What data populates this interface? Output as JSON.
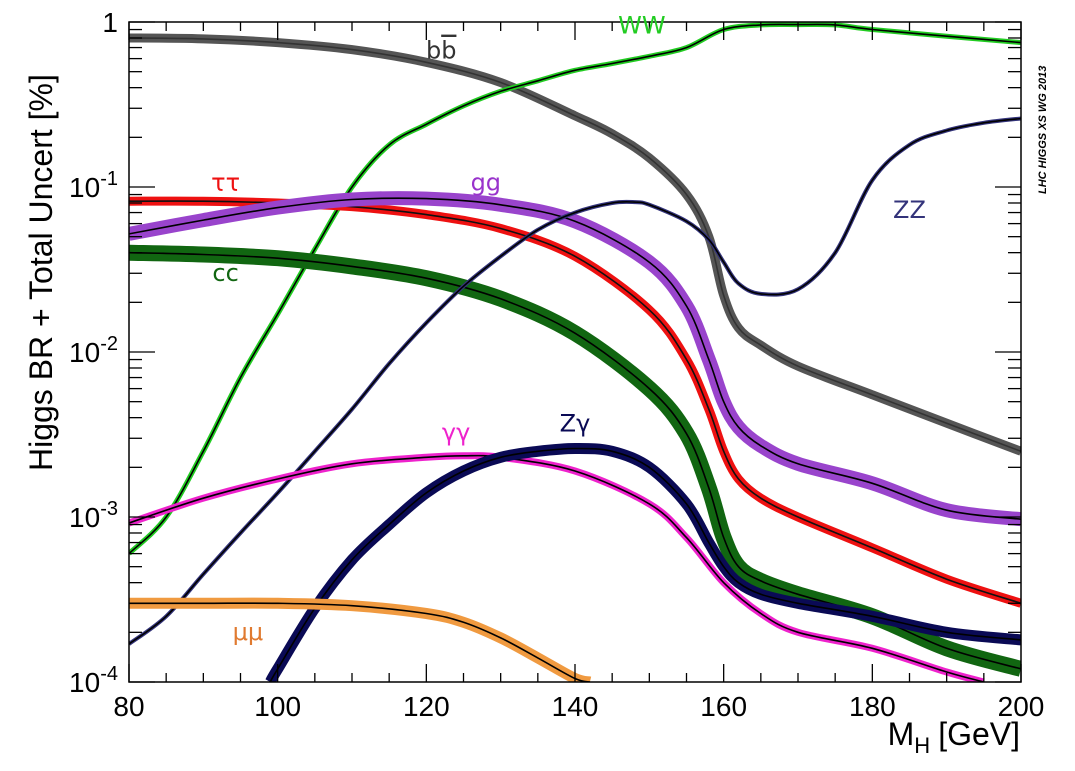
{
  "chart_data": {
    "type": "line",
    "ylabel": "Higgs BR + Total Uncert [%]",
    "xlabel_main": "M",
    "xlabel_sub": "H",
    "xlabel_unit": "[GeV]",
    "credit": "LHC HIGGS XS WG 2013",
    "xlim": [
      80,
      200
    ],
    "ylim": [
      0.0001,
      1
    ],
    "yscale": "log",
    "x_ticks": [
      "80",
      "100",
      "120",
      "140",
      "160",
      "180",
      "200"
    ],
    "y_ticks": [
      {
        "base": "1",
        "exp": ""
      },
      {
        "base": "10",
        "exp": "-1"
      },
      {
        "base": "10",
        "exp": "-2"
      },
      {
        "base": "10",
        "exp": "-3"
      },
      {
        "base": "10",
        "exp": "-4"
      }
    ],
    "grid": false,
    "series": [
      {
        "name": "bb̄",
        "label_text": "bb",
        "label_overline": "b",
        "color": "#333333",
        "band_color": "#555555",
        "band_width": 9,
        "x": [
          80,
          90,
          100,
          110,
          120,
          130,
          140,
          145,
          150,
          155,
          158,
          160,
          162,
          165,
          170,
          180,
          190,
          200
        ],
        "y": [
          0.8,
          0.79,
          0.75,
          0.68,
          0.57,
          0.43,
          0.27,
          0.21,
          0.15,
          0.09,
          0.05,
          0.022,
          0.014,
          0.011,
          0.0082,
          0.0055,
          0.0037,
          0.0025
        ]
      },
      {
        "name": "WW",
        "label_text": "WW",
        "color": "#000000",
        "band_color": "#22cc22",
        "band_width": 5,
        "x": [
          80,
          85,
          90,
          95,
          100,
          105,
          110,
          115,
          120,
          125,
          130,
          135,
          140,
          145,
          150,
          155,
          160,
          165,
          170,
          175,
          180,
          190,
          200
        ],
        "y": [
          0.0006,
          0.001,
          0.0025,
          0.007,
          0.017,
          0.042,
          0.1,
          0.18,
          0.24,
          0.31,
          0.38,
          0.44,
          0.51,
          0.56,
          0.62,
          0.7,
          0.9,
          0.96,
          0.965,
          0.96,
          0.9,
          0.82,
          0.75
        ]
      },
      {
        "name": "ττ",
        "label_text": "ττ",
        "color": "#111111",
        "band_color": "#ee1111",
        "band_width": 9,
        "x": [
          80,
          90,
          100,
          110,
          120,
          130,
          140,
          150,
          155,
          158,
          160,
          162,
          165,
          170,
          180,
          190,
          200
        ],
        "y": [
          0.082,
          0.082,
          0.08,
          0.076,
          0.068,
          0.056,
          0.038,
          0.018,
          0.009,
          0.0045,
          0.0025,
          0.0017,
          0.0013,
          0.001,
          0.00065,
          0.00042,
          0.0003
        ]
      },
      {
        "name": "gg",
        "label_text": "gg",
        "color": "#000000",
        "band_color": "#9944cc",
        "band_width": 14,
        "x": [
          80,
          90,
          100,
          110,
          120,
          130,
          140,
          150,
          155,
          158,
          160,
          162,
          165,
          170,
          180,
          190,
          200
        ],
        "y": [
          0.052,
          0.063,
          0.075,
          0.084,
          0.085,
          0.078,
          0.062,
          0.035,
          0.019,
          0.009,
          0.005,
          0.0035,
          0.0027,
          0.0021,
          0.0016,
          0.0011,
          0.00097
        ]
      },
      {
        "name": "cc̄",
        "label_text": "cc",
        "label_overline": "c",
        "color": "#000000",
        "band_color": "#116611",
        "band_width": 16,
        "x": [
          80,
          90,
          100,
          110,
          120,
          130,
          140,
          150,
          155,
          158,
          160,
          162,
          165,
          170,
          180,
          190,
          200
        ],
        "y": [
          0.04,
          0.039,
          0.037,
          0.033,
          0.028,
          0.021,
          0.013,
          0.006,
          0.0032,
          0.0015,
          0.00075,
          0.0005,
          0.00041,
          0.00034,
          0.00025,
          0.00016,
          0.00012
        ]
      },
      {
        "name": "ZZ",
        "label_text": "ZZ",
        "color": "#000000",
        "band_color": "#33337a",
        "band_width": 4,
        "x": [
          80,
          85,
          90,
          95,
          100,
          105,
          110,
          115,
          120,
          125,
          130,
          135,
          140,
          145,
          148,
          150,
          155,
          158,
          160,
          162,
          165,
          170,
          175,
          180,
          185,
          190,
          195,
          200
        ],
        "y": [
          0.00017,
          0.00025,
          0.00045,
          0.0008,
          0.0014,
          0.0025,
          0.0045,
          0.0085,
          0.015,
          0.025,
          0.038,
          0.055,
          0.07,
          0.08,
          0.081,
          0.078,
          0.062,
          0.048,
          0.035,
          0.026,
          0.0225,
          0.024,
          0.04,
          0.11,
          0.18,
          0.22,
          0.245,
          0.26
        ]
      },
      {
        "name": "γγ",
        "label_text": "γγ",
        "color": "#000000",
        "band_color": "#ee22cc",
        "band_width": 7,
        "x": [
          80,
          90,
          100,
          110,
          120,
          125,
          130,
          140,
          150,
          155,
          160,
          165,
          170,
          180,
          190,
          195
        ],
        "y": [
          0.00092,
          0.0013,
          0.0017,
          0.0021,
          0.0023,
          0.00235,
          0.0023,
          0.0019,
          0.0012,
          0.00075,
          0.0004,
          0.00026,
          0.0002,
          0.00016,
          0.000115,
          0.0001
        ]
      },
      {
        "name": "Zγ",
        "label_text": "Zγ",
        "color": "#000000",
        "band_color": "#0a0a55",
        "band_width": 11,
        "x": [
          99,
          100,
          105,
          110,
          115,
          120,
          125,
          130,
          135,
          140,
          145,
          150,
          155,
          158,
          160,
          162,
          165,
          170,
          180,
          190,
          200
        ],
        "y": [
          0.0001,
          0.00012,
          0.00028,
          0.00055,
          0.0009,
          0.0014,
          0.0019,
          0.0023,
          0.0025,
          0.0026,
          0.0025,
          0.002,
          0.0012,
          0.0007,
          0.0005,
          0.0004,
          0.00034,
          0.0003,
          0.00025,
          0.0002,
          0.00018
        ]
      },
      {
        "name": "μμ",
        "label_text": "μμ",
        "color": "#000000",
        "band_color": "#f09a40",
        "band_width": 11,
        "x": [
          80,
          90,
          100,
          110,
          120,
          125,
          130,
          135,
          140,
          142
        ],
        "y": [
          0.0003,
          0.0003,
          0.0003,
          0.00029,
          0.00026,
          0.00023,
          0.000185,
          0.00014,
          0.000105,
          0.0001
        ]
      }
    ]
  },
  "label_positions": {
    "bb̄": [
      122,
      0.6
    ],
    "WW": [
      149,
      0.85
    ],
    "ττ": [
      93,
      0.095
    ],
    "gg": [
      128,
      0.095
    ],
    "cc̄": [
      93,
      0.027
    ],
    "ZZ": [
      185,
      0.065
    ],
    "γγ": [
      124,
      0.0029
    ],
    "Zγ": [
      140,
      0.0033
    ],
    "μμ": [
      96,
      0.00018
    ]
  },
  "label_colors": {
    "bb̄": "#333333",
    "WW": "#22cc22",
    "ττ": "#ee1111",
    "gg": "#9933cc",
    "cc̄": "#116611",
    "ZZ": "#33337a",
    "γγ": "#ee22cc",
    "Zγ": "#0a0a55",
    "μμ": "#e07a30"
  }
}
